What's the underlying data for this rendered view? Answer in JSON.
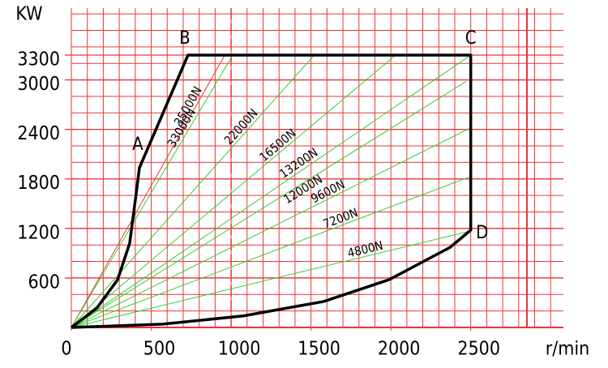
{
  "chart_data": {
    "type": "line",
    "y_label": "KW",
    "x_label": "r/min",
    "xlim": [
      0,
      3080
    ],
    "ylim": [
      0,
      3870
    ],
    "xticks": [
      0,
      500,
      1000,
      1500,
      2000,
      2500
    ],
    "yticks": [
      600,
      1200,
      1800,
      2400,
      3000,
      3300
    ],
    "grid": true,
    "grid_color": "#e8363a",
    "x_grid_step": 100,
    "y_grid_step": 200,
    "boundary": {
      "color": "#000000",
      "x": [
        0,
        160,
        290,
        365,
        405,
        426,
        730,
        2500,
        2500,
        2370,
        1990,
        1580,
        1075,
        570,
        0
      ],
      "y": [
        0,
        235,
        580,
        1020,
        1610,
        1935,
        3300,
        3300,
        1180,
        970,
        580,
        315,
        140,
        40,
        0
      ]
    },
    "points": [
      {
        "label": "A",
        "x": 426,
        "y": 1935
      },
      {
        "label": "B",
        "x": 730,
        "y": 3300
      },
      {
        "label": "C",
        "x": 2500,
        "y": 3300
      },
      {
        "label": "D",
        "x": 2500,
        "y": 1180
      }
    ],
    "force_line_color": "#33cc33",
    "force_lines": [
      {
        "label": "35000N",
        "x": [
          0,
          960
        ],
        "y": [
          0,
          3300
        ]
      },
      {
        "label": "33000N",
        "x": [
          0,
          1010
        ],
        "y": [
          0,
          3300
        ]
      },
      {
        "label": "22000N",
        "x": [
          0,
          1520
        ],
        "y": [
          0,
          3300
        ]
      },
      {
        "label": "16500N",
        "x": [
          0,
          2030
        ],
        "y": [
          0,
          3300
        ]
      },
      {
        "label": "13200N",
        "x": [
          0,
          2500
        ],
        "y": [
          0,
          3300
        ]
      },
      {
        "label": "12000N",
        "x": [
          0,
          2470
        ],
        "y": [
          0,
          2980
        ]
      },
      {
        "label": "9600N",
        "x": [
          0,
          2500
        ],
        "y": [
          0,
          2420
        ]
      },
      {
        "label": "7200N",
        "x": [
          0,
          2500
        ],
        "y": [
          0,
          1830
        ]
      },
      {
        "label": "4800N",
        "x": [
          0,
          2500
        ],
        "y": [
          0,
          1170
        ]
      }
    ]
  }
}
